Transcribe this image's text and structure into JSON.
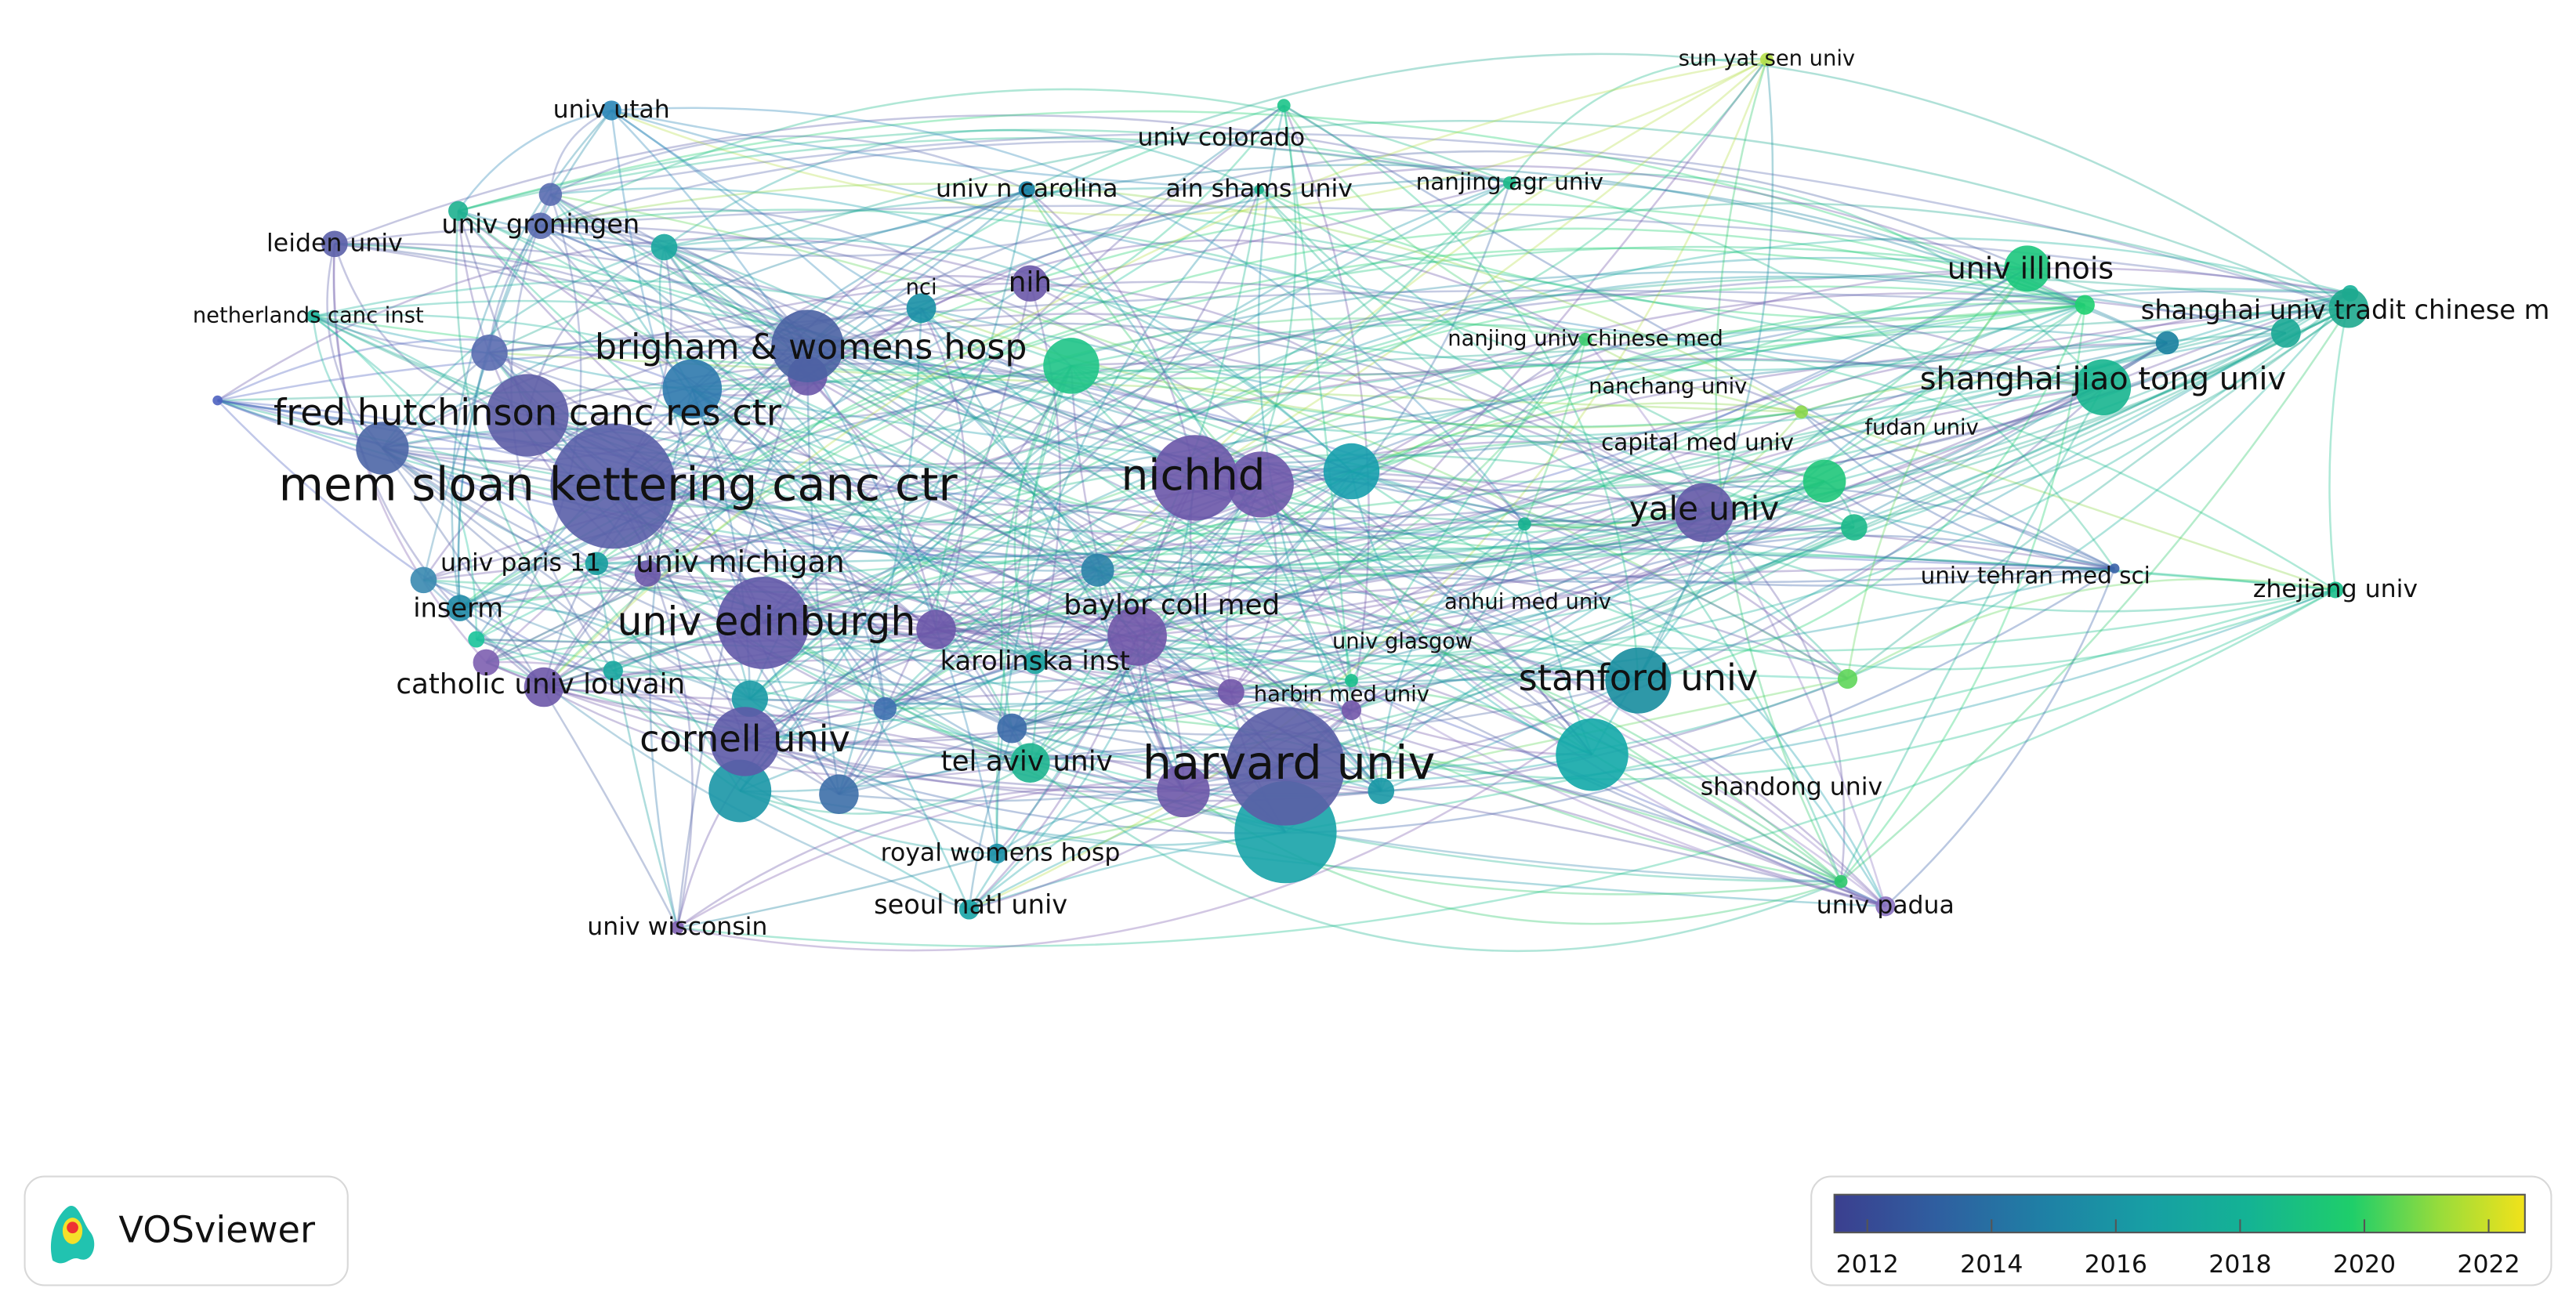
{
  "nodes": [
    {
      "label": "mem sloan kettering canc ctr"
    },
    {
      "label": "fred hutchinson canc res ctr"
    },
    {
      "label": "brigham & womens hosp"
    },
    {
      "label": "nichhd"
    },
    {
      "label": "harvard univ"
    },
    {
      "label": "univ edinburgh"
    },
    {
      "label": "cornell univ"
    },
    {
      "label": "stanford univ"
    },
    {
      "label": "yale univ"
    },
    {
      "label": "shanghai jiao tong univ"
    },
    {
      "label": "univ illinois"
    },
    {
      "label": "shanghai univ tradit chinese m"
    },
    {
      "label": "univ michigan"
    },
    {
      "label": "univ paris 11"
    },
    {
      "label": "inserm"
    },
    {
      "label": "catholic univ louvain"
    },
    {
      "label": "baylor coll med"
    },
    {
      "label": "karolinska inst"
    },
    {
      "label": "tel aviv univ"
    },
    {
      "label": "royal womens hosp"
    },
    {
      "label": "seoul natl univ"
    },
    {
      "label": "univ wisconsin"
    },
    {
      "label": "harbin med univ"
    },
    {
      "label": "univ glasgow"
    },
    {
      "label": "anhui med univ"
    },
    {
      "label": "capital med univ"
    },
    {
      "label": "nanchang univ"
    },
    {
      "label": "nanjing univ chinese med"
    },
    {
      "label": "fudan univ"
    },
    {
      "label": "univ tehran med sci"
    },
    {
      "label": "zhejiang univ"
    },
    {
      "label": "shandong univ"
    },
    {
      "label": "univ padua"
    },
    {
      "label": "sun yat sen univ"
    },
    {
      "label": "univ colorado"
    },
    {
      "label": "ain shams univ"
    },
    {
      "label": "univ n carolina"
    },
    {
      "label": "nanjing agr univ"
    },
    {
      "label": "nih"
    },
    {
      "label": "nci"
    },
    {
      "label": "univ utah"
    },
    {
      "label": "univ groningen"
    },
    {
      "label": "leiden univ"
    },
    {
      "label": "netherlands canc inst"
    }
  ],
  "colorbar": {
    "ticks": [
      2012,
      2014,
      2016,
      2018,
      2020,
      2022
    ]
  },
  "logo": {
    "text": "VOSviewer"
  }
}
